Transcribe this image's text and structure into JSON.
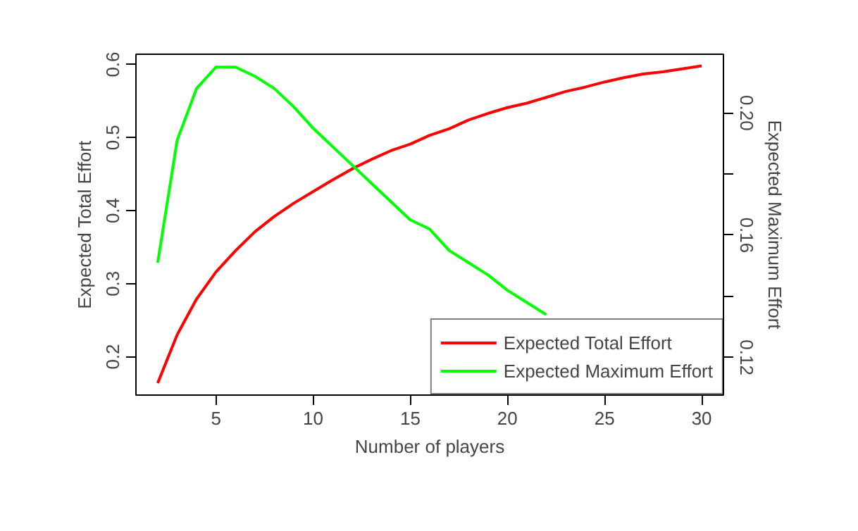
{
  "chart_data": {
    "type": "line",
    "xlabel": "Number of players",
    "ylabel": "Expected Total Effort",
    "y2label": "Expected Maximum Effort",
    "x": [
      2,
      3,
      4,
      5,
      6,
      7,
      8,
      9,
      10,
      11,
      12,
      13,
      14,
      15,
      16,
      17,
      18,
      19,
      20,
      21,
      22,
      23,
      24,
      25,
      26,
      27,
      28,
      29,
      30
    ],
    "series": [
      {
        "name": "Expected Total Effort",
        "color": "#ff0000",
        "values": [
          0.164,
          0.23,
          0.279,
          0.316,
          0.345,
          0.371,
          0.392,
          0.41,
          0.426,
          0.442,
          0.457,
          0.47,
          0.482,
          0.491,
          0.503,
          0.512,
          0.524,
          0.533,
          0.541,
          0.547,
          0.555,
          0.563,
          0.569,
          0.576,
          0.582,
          0.587,
          0.59,
          0.594,
          0.598
        ]
      },
      {
        "name": "Expected Maximum Effort",
        "color": "#00ff00",
        "axis": "y2",
        "values": [
          0.151,
          0.191,
          0.208,
          0.215,
          0.215,
          0.212,
          0.208,
          0.202,
          0.195,
          0.189,
          0.183,
          0.177,
          0.171,
          0.165,
          0.162,
          0.155,
          0.151,
          0.147,
          0.142,
          0.138,
          0.134,
          null,
          null,
          null,
          null,
          null,
          null,
          null,
          null
        ]
      }
    ],
    "xlim": [
      0.88,
      31.12
    ],
    "xticks": [
      5,
      10,
      15,
      20,
      25,
      30
    ],
    "ylim": [
      0.1475,
      0.614
    ],
    "yticks": [
      0.2,
      0.3,
      0.4,
      0.5,
      0.6
    ],
    "y2lim": [
      0.1077,
      0.2192
    ],
    "y2ticks": [
      {
        "value": 0.12,
        "label": "0.12"
      },
      {
        "value": 0.14,
        "label": null
      },
      {
        "value": 0.16,
        "label": "0.16"
      },
      {
        "value": 0.18,
        "label": null
      },
      {
        "value": 0.2,
        "label": "0.20"
      }
    ],
    "legend": "bottom right",
    "grid": false,
    "line_style": "solid",
    "marker": "none"
  }
}
